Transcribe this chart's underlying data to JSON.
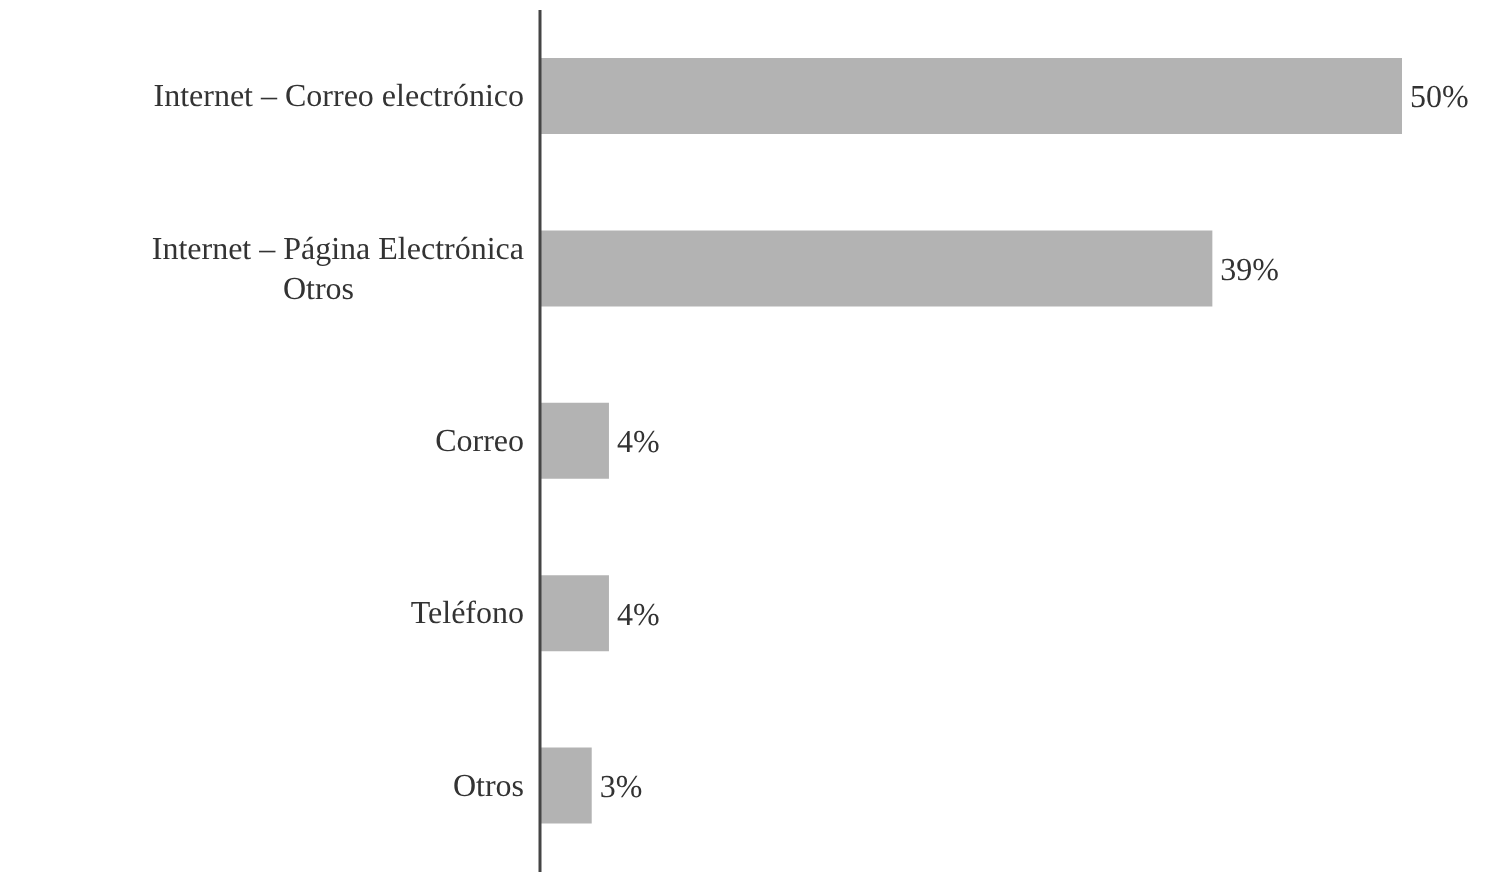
{
  "chart_data": {
    "type": "bar",
    "orientation": "horizontal",
    "categories": [
      "Internet – Correo electrónico",
      "Internet – Página Electrónica\nOtros",
      "Correo",
      "Teléfono",
      "Otros"
    ],
    "values": [
      50,
      39,
      4,
      4,
      3
    ],
    "value_labels": [
      "50%",
      "39%",
      "4%",
      "4%",
      "3%"
    ],
    "color": "#b3b3b3",
    "tick_labels": "y"
  }
}
